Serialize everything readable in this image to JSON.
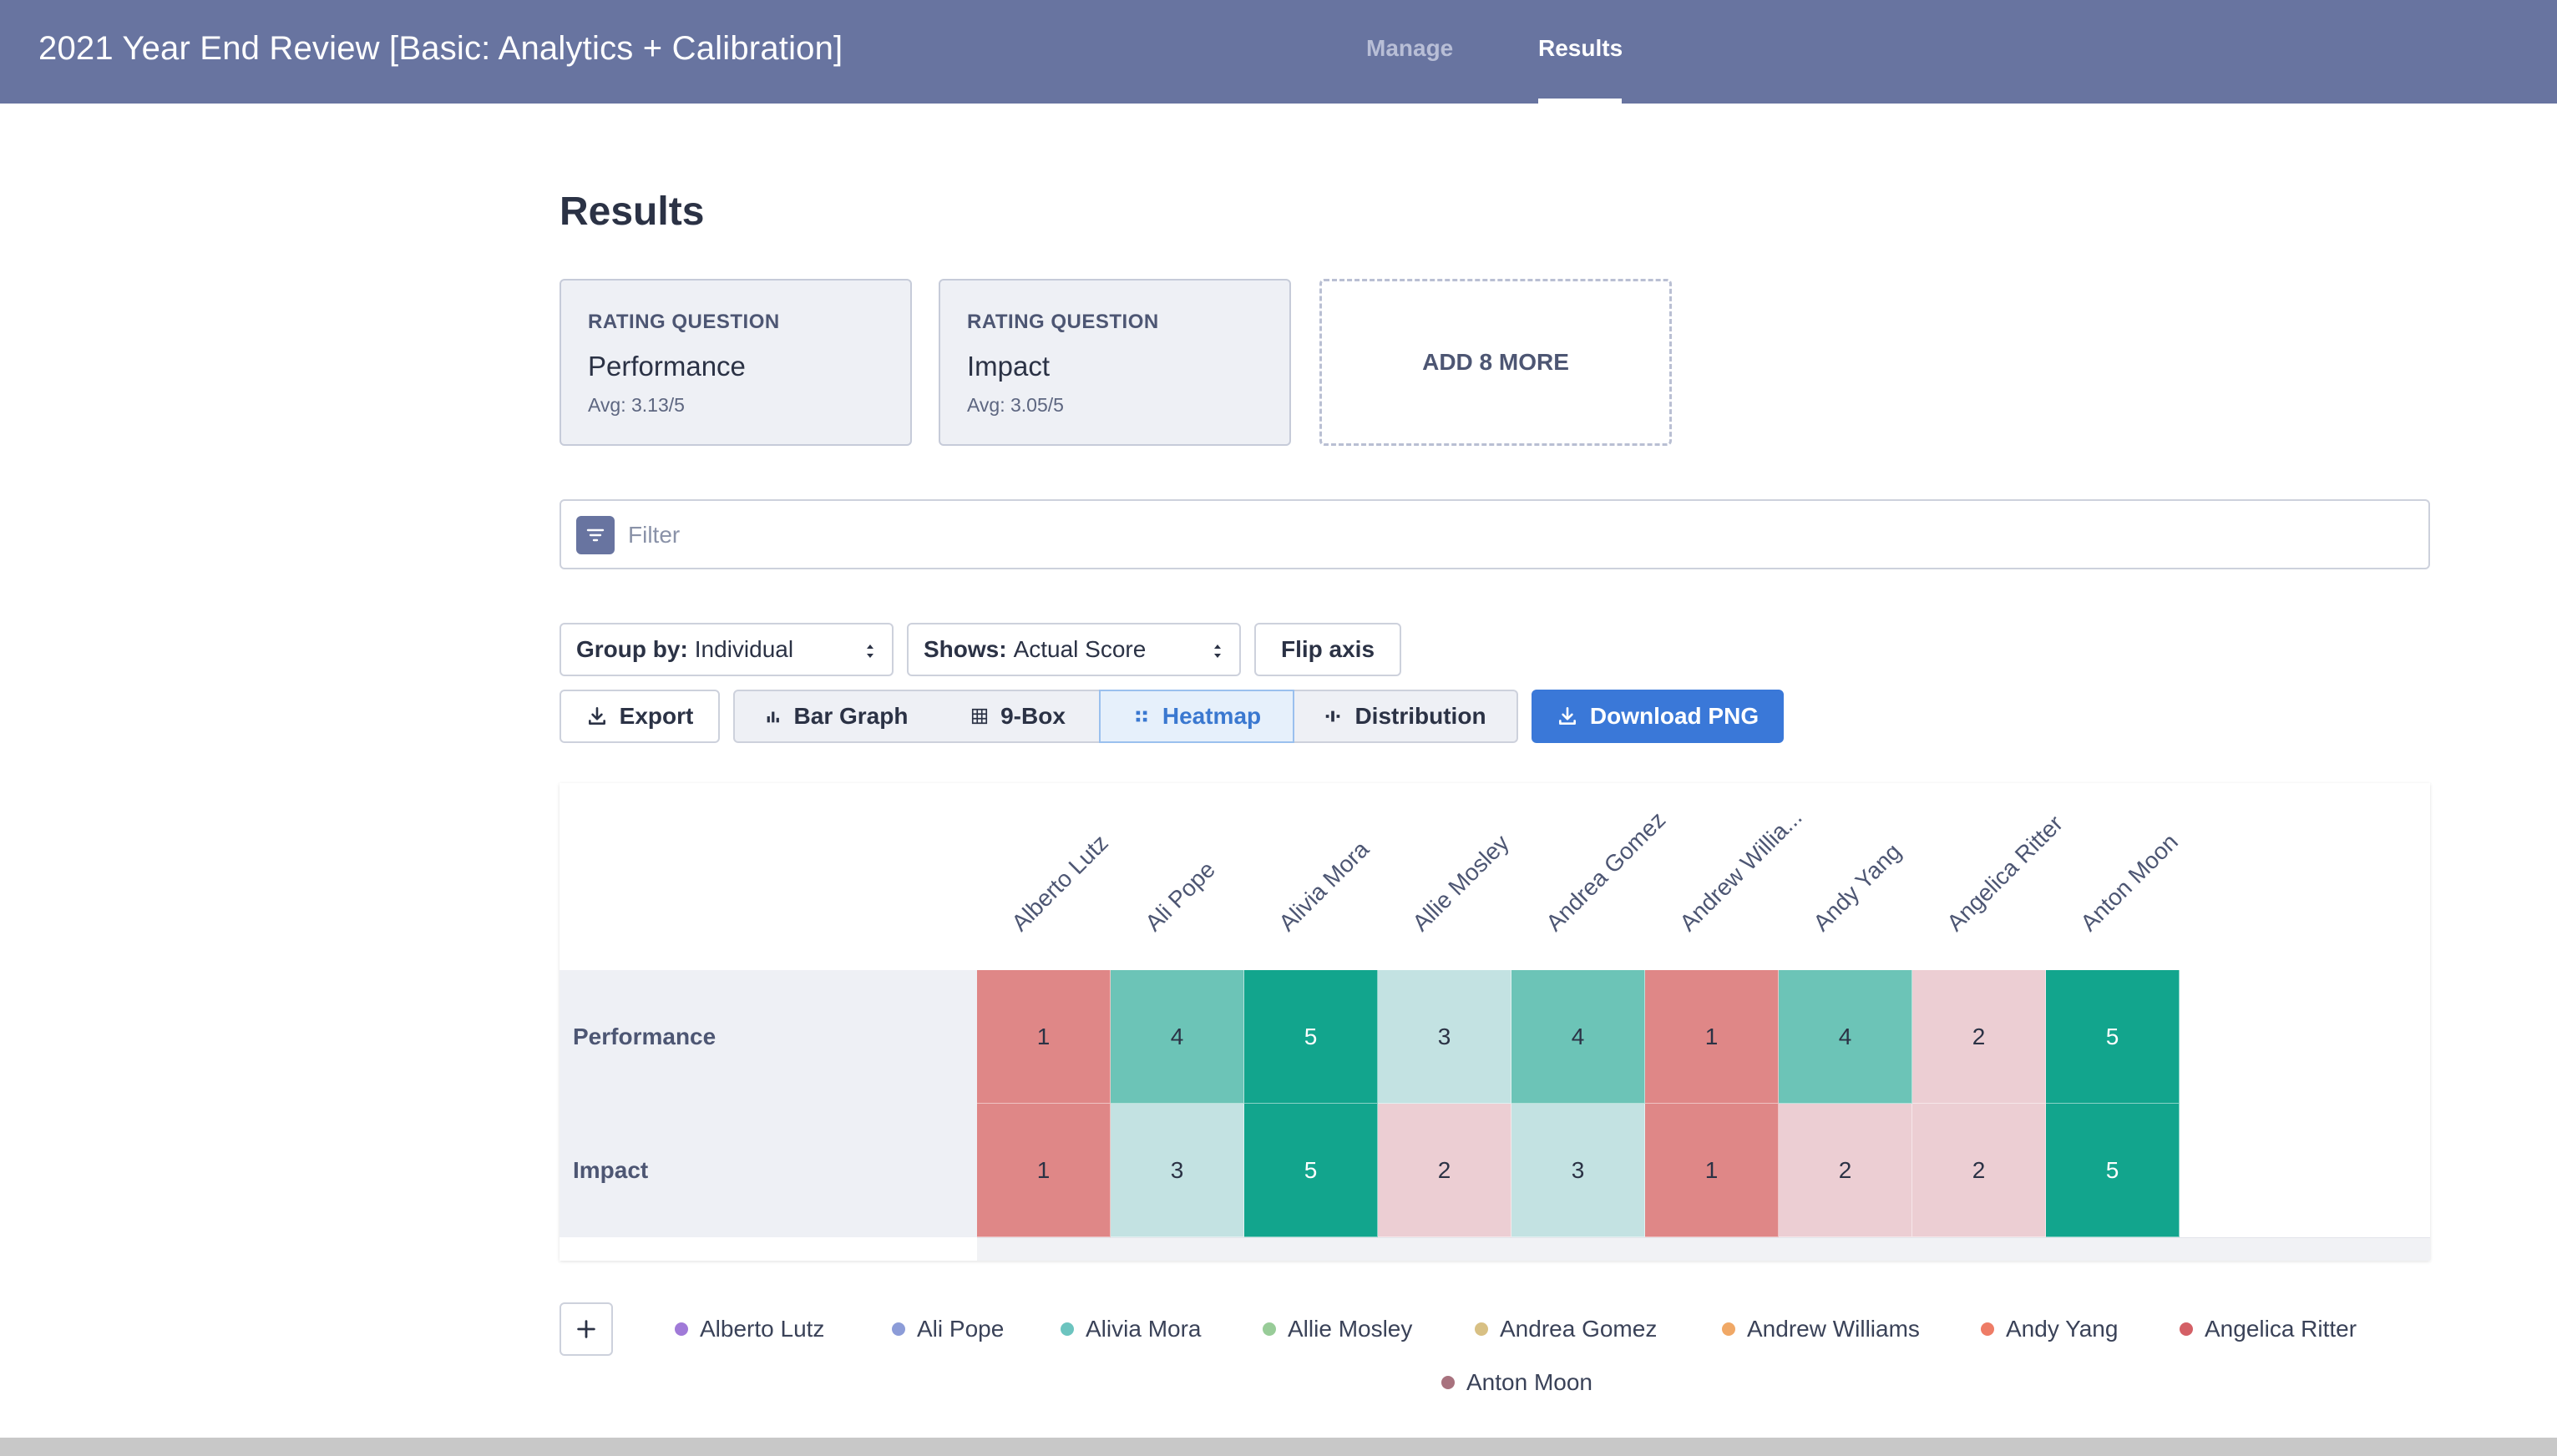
{
  "app": {
    "title": "2021 Year End Review [Basic: Analytics + Calibration]"
  },
  "nav": {
    "tabs": [
      "Manage",
      "Results"
    ],
    "active": "Results"
  },
  "page": {
    "title": "Results"
  },
  "questions": [
    {
      "type": "RATING QUESTION",
      "name": "Performance",
      "avg": "Avg: 3.13/5"
    },
    {
      "type": "RATING QUESTION",
      "name": "Impact",
      "avg": "Avg: 3.05/5"
    }
  ],
  "add_more": {
    "label": "ADD 8 MORE"
  },
  "filter": {
    "placeholder": "Filter",
    "icon": "filter-icon"
  },
  "controls": {
    "group_by": {
      "label": "Group by:",
      "value": "Individual"
    },
    "shows": {
      "label": "Shows:",
      "value": "Actual Score"
    },
    "flip_axis": "Flip axis",
    "export": "Export",
    "views": [
      "Bar Graph",
      "9-Box",
      "Heatmap",
      "Distribution"
    ],
    "active_view": "Heatmap",
    "download": "Download PNG"
  },
  "heatmap": {
    "columns": [
      "Alberto Lutz",
      "Ali Pope",
      "Alivia Mora",
      "Allie Mosley",
      "Andrea Gomez",
      "Andrew Willia...",
      "Andy Yang",
      "Angelica Ritter",
      "Anton Moon"
    ],
    "rows": [
      {
        "label": "Performance",
        "values": [
          1,
          4,
          5,
          3,
          4,
          1,
          4,
          2,
          5
        ]
      },
      {
        "label": "Impact",
        "values": [
          1,
          3,
          5,
          2,
          3,
          1,
          2,
          2,
          5
        ]
      }
    ],
    "scale_colors": {
      "1": "#df8787",
      "2": "#ecced3",
      "3": "#c3e2e2",
      "4": "#6cc4b7",
      "5": "#12a58d"
    }
  },
  "legend": [
    {
      "name": "Alberto Lutz",
      "color": "#a07ad8"
    },
    {
      "name": "Ali Pope",
      "color": "#8c9cd8"
    },
    {
      "name": "Alivia Mora",
      "color": "#6cc4bf"
    },
    {
      "name": "Allie Mosley",
      "color": "#98cc98"
    },
    {
      "name": "Andrea Gomez",
      "color": "#d8c084"
    },
    {
      "name": "Andrew Williams",
      "color": "#f0a866"
    },
    {
      "name": "Andy Yang",
      "color": "#ee7c66"
    },
    {
      "name": "Angelica Ritter",
      "color": "#d46066"
    },
    {
      "name": "Anton Moon",
      "color": "#a8727e"
    }
  ]
}
